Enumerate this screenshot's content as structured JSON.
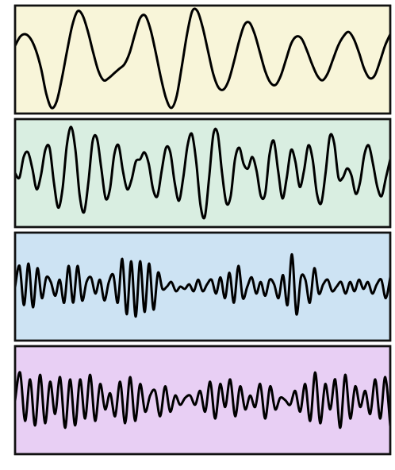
{
  "chart_data": {
    "type": "line",
    "title": "",
    "xlabel": "",
    "ylabel": "",
    "grid": false,
    "legend": "none",
    "panels": [
      {
        "background": "#f8f5d9",
        "ylim": [
          -1,
          1
        ],
        "values": [
          0.3,
          0.5,
          0.55,
          0.45,
          0.2,
          -0.2,
          -0.75,
          -1.05,
          -0.9,
          -0.4,
          0.2,
          0.75,
          1.05,
          0.95,
          0.6,
          0.15,
          -0.25,
          -0.45,
          -0.4,
          -0.3,
          -0.2,
          -0.1,
          0.15,
          0.55,
          0.9,
          0.95,
          0.65,
          0.15,
          -0.4,
          -0.85,
          -1.05,
          -0.8,
          -0.15,
          0.55,
          1.05,
          1.05,
          0.7,
          0.2,
          -0.3,
          -0.6,
          -0.65,
          -0.45,
          -0.05,
          0.4,
          0.75,
          0.8,
          0.55,
          0.15,
          -0.25,
          -0.5,
          -0.55,
          -0.35,
          0.0,
          0.35,
          0.5,
          0.45,
          0.2,
          -0.1,
          -0.35,
          -0.45,
          -0.3,
          0.0,
          0.3,
          0.5,
          0.6,
          0.45,
          0.15,
          -0.2,
          -0.4,
          -0.35,
          -0.05,
          0.3,
          0.55
        ]
      },
      {
        "background": "#d9eee1",
        "ylim": [
          -1,
          1
        ],
        "values": [
          0.0,
          -0.1,
          0.35,
          0.45,
          0.1,
          -0.35,
          -0.05,
          0.5,
          0.55,
          -0.2,
          -0.75,
          -0.35,
          0.6,
          1.0,
          0.5,
          -0.5,
          -0.85,
          -0.2,
          0.7,
          0.75,
          0.1,
          -0.55,
          -0.35,
          0.4,
          0.6,
          0.05,
          -0.35,
          -0.15,
          0.25,
          0.3,
          0.45,
          0.2,
          -0.35,
          -0.5,
          0.05,
          0.55,
          0.45,
          -0.2,
          -0.6,
          -0.1,
          0.6,
          0.85,
          0.25,
          -0.7,
          -0.95,
          -0.1,
          0.85,
          0.85,
          0.0,
          -0.65,
          -0.5,
          0.3,
          0.55,
          0.2,
          0.1,
          0.35,
          0.05,
          -0.5,
          -0.45,
          0.4,
          0.7,
          0.05,
          -0.55,
          -0.1,
          0.5,
          0.25,
          -0.3,
          0.05,
          0.6,
          0.3,
          -0.45,
          -0.65,
          0.0,
          0.8,
          0.65,
          -0.1,
          -0.1,
          0.1,
          -0.05,
          -0.45,
          -0.2,
          0.4,
          0.6,
          0.2,
          -0.3,
          -0.5,
          -0.1,
          0.3
        ]
      },
      {
        "background": "#cde3f3",
        "ylim": [
          -1,
          1
        ],
        "values": [
          0.0,
          0.45,
          -0.4,
          0.5,
          -0.45,
          0.4,
          -0.25,
          0.2,
          0.1,
          -0.2,
          0.15,
          -0.35,
          0.45,
          -0.35,
          0.45,
          -0.3,
          0.1,
          0.2,
          -0.15,
          0.15,
          -0.3,
          0.1,
          0.25,
          -0.35,
          0.6,
          -0.6,
          0.55,
          -0.65,
          0.55,
          -0.55,
          0.5,
          -0.5,
          0.3,
          -0.05,
          0.0,
          0.1,
          -0.1,
          0.0,
          -0.05,
          0.05,
          -0.1,
          0.15,
          -0.1,
          0.05,
          0.15,
          -0.15,
          0.2,
          -0.25,
          0.3,
          -0.35,
          0.45,
          -0.25,
          0.0,
          0.2,
          -0.15,
          0.1,
          -0.2,
          0.15,
          0.05,
          -0.25,
          0.25,
          -0.4,
          0.7,
          -0.6,
          0.2,
          0.15,
          -0.35,
          0.4,
          -0.15,
          0.05,
          0.15,
          -0.1,
          0.0,
          0.1,
          -0.15,
          0.1,
          -0.1,
          0.15,
          -0.05,
          0.1,
          -0.15,
          0.05,
          0.15,
          -0.25,
          0.2
        ]
      },
      {
        "background": "#e8cff4",
        "ylim": [
          -1,
          1
        ],
        "values": [
          0.0,
          0.6,
          -0.45,
          0.45,
          -0.55,
          0.55,
          -0.5,
          0.4,
          -0.3,
          0.5,
          -0.6,
          0.45,
          -0.55,
          0.45,
          -0.4,
          0.55,
          -0.45,
          0.35,
          -0.2,
          0.15,
          -0.35,
          0.4,
          -0.5,
          0.5,
          -0.45,
          0.35,
          -0.25,
          0.1,
          0.2,
          -0.35,
          0.3,
          -0.25,
          0.1,
          -0.1,
          0.05,
          0.1,
          -0.1,
          0.2,
          -0.25,
          0.4,
          -0.4,
          0.35,
          -0.15,
          0.45,
          -0.35,
          0.3,
          -0.2,
          0.1,
          -0.15,
          0.35,
          -0.4,
          0.3,
          -0.2,
          0.05,
          0.0,
          -0.1,
          0.2,
          -0.25,
          0.35,
          -0.45,
          0.6,
          -0.5,
          0.35,
          -0.2,
          0.45,
          -0.6,
          0.55,
          -0.4,
          0.3,
          -0.15,
          0.2,
          -0.3,
          0.45,
          -0.4,
          0.5,
          -0.55
        ]
      }
    ]
  }
}
